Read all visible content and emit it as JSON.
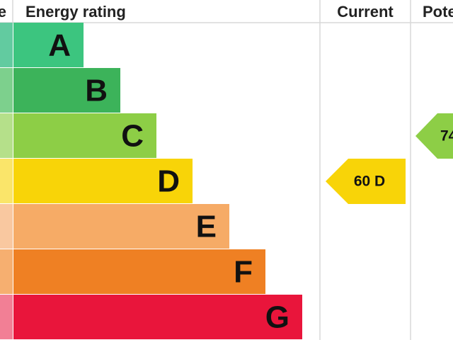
{
  "header": {
    "columns": [
      "e",
      "Energy rating",
      "Current",
      "Pote"
    ]
  },
  "ratings": [
    "A",
    "B",
    "C",
    "D",
    "E",
    "F",
    "G"
  ],
  "current": "60 D",
  "potential": "74"
}
